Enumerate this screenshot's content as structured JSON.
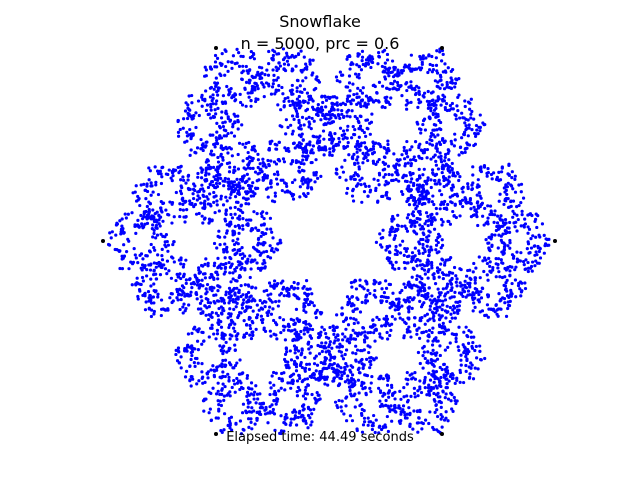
{
  "figure": {
    "title": "Snowflake",
    "subtitle": "n = 5000, prc = 0.6",
    "footer": "Elapsed time: 44.49 seconds"
  },
  "chart_data": {
    "type": "scatter",
    "title": "Snowflake",
    "subtitle": "n = 5000, prc = 0.6",
    "n": 5000,
    "prc": 0.6,
    "axes_visible": false,
    "grid": false,
    "xlim": [
      -1.0,
      1.0
    ],
    "ylim": [
      -0.866,
      0.866
    ],
    "point_color": "#0000ff",
    "vertex_color": "#000000",
    "vertices": [
      {
        "x": -1.0,
        "y": 0.0
      },
      {
        "x": -0.5,
        "y": 0.866
      },
      {
        "x": 0.5,
        "y": 0.866
      },
      {
        "x": 1.0,
        "y": 0.0
      },
      {
        "x": 0.5,
        "y": -0.866
      },
      {
        "x": -0.5,
        "y": -0.866
      }
    ],
    "annotation": "Elapsed time: 44.49 seconds"
  }
}
